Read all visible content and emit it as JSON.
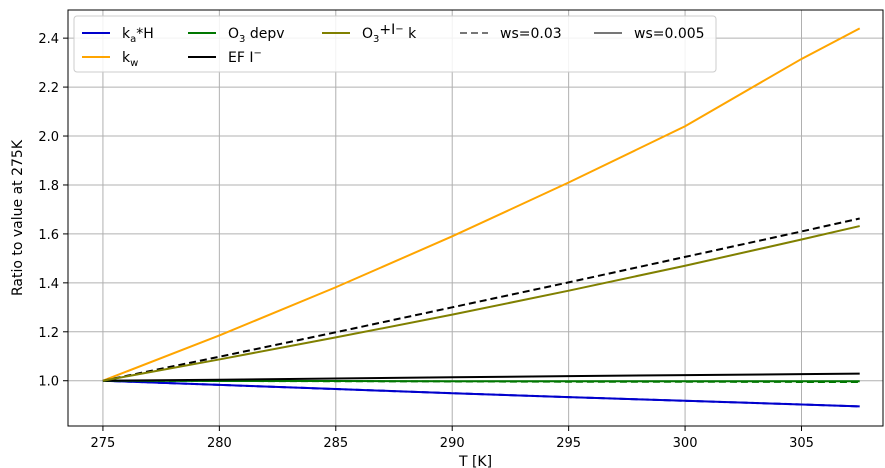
{
  "chart_data": {
    "type": "line",
    "xlabel": "T [K]",
    "ylabel": "Ratio to value at 275K",
    "xlim": [
      273.5,
      308.5
    ],
    "ylim": [
      0.815,
      2.515
    ],
    "xticks": [
      275,
      280,
      285,
      290,
      295,
      300,
      305
    ],
    "yticks": [
      1.0,
      1.2,
      1.4,
      1.6,
      1.8,
      2.0,
      2.2,
      2.4
    ],
    "xtick_labels": [
      "275",
      "280",
      "285",
      "290",
      "295",
      "300",
      "305"
    ],
    "ytick_labels": [
      "1.0",
      "1.2",
      "1.4",
      "1.6",
      "1.8",
      "2.0",
      "2.2",
      "2.4"
    ],
    "grid": true,
    "legend_position": "top-left",
    "series": [
      {
        "name": "k_a*H",
        "legend_main": "k",
        "legend_sub": "a",
        "legend_post": "*H",
        "color": "#0000cc",
        "dash": "solid",
        "x": [
          275,
          280,
          285,
          290,
          295,
          300,
          305,
          307.5
        ],
        "y": [
          1.0,
          0.983,
          0.966,
          0.949,
          0.933,
          0.918,
          0.903,
          0.895
        ]
      },
      {
        "name": "k_a*H ws=0.03",
        "color": "#0000cc",
        "dash": "dashed",
        "x": [
          275,
          280,
          285,
          290,
          295,
          300,
          305,
          307.5
        ],
        "y": [
          1.0,
          0.983,
          0.966,
          0.949,
          0.933,
          0.918,
          0.903,
          0.895
        ]
      },
      {
        "name": "k_w",
        "legend_main": "k",
        "legend_sub": "w",
        "legend_post": "",
        "color": "#ffa500",
        "dash": "solid",
        "x": [
          275,
          280,
          285,
          290,
          295,
          300,
          305,
          307.5
        ],
        "y": [
          1.0,
          1.185,
          1.382,
          1.59,
          1.81,
          2.04,
          2.315,
          2.44
        ]
      },
      {
        "name": "O3 depv",
        "legend_main": "O",
        "legend_sub": "3",
        "legend_post": " depv",
        "color": "#007700",
        "dash": "solid",
        "x": [
          275,
          280,
          285,
          290,
          295,
          300,
          305,
          307.5
        ],
        "y": [
          1.0,
          0.999,
          0.999,
          0.998,
          0.998,
          0.998,
          0.998,
          0.998
        ]
      },
      {
        "name": "O3 depv ws=0.03",
        "color": "#007700",
        "dash": "dashed",
        "x": [
          275,
          280,
          285,
          290,
          295,
          300,
          305,
          307.5
        ],
        "y": [
          1.0,
          0.999,
          0.998,
          0.997,
          0.996,
          0.996,
          0.995,
          0.995
        ]
      },
      {
        "name": "EF I-",
        "legend_main": "EF I",
        "legend_sup": "−",
        "color": "#000000",
        "dash": "solid",
        "x": [
          275,
          280,
          285,
          290,
          295,
          300,
          305,
          307.5
        ],
        "y": [
          1.0,
          1.004,
          1.009,
          1.014,
          1.019,
          1.023,
          1.027,
          1.029
        ]
      },
      {
        "name": "EF I- ws=0.03",
        "color": "#000000",
        "dash": "dashed",
        "x": [
          275,
          280,
          285,
          290,
          295,
          300,
          305,
          307.5
        ],
        "y": [
          1.0,
          1.098,
          1.198,
          1.3,
          1.402,
          1.506,
          1.61,
          1.663
        ]
      },
      {
        "name": "O3+I- k",
        "legend_main": "O",
        "legend_sub": "3",
        "legend_mid": "+I",
        "legend_sup": "−",
        "legend_post": " k",
        "color": "#808000",
        "dash": "solid",
        "x": [
          275,
          280,
          285,
          290,
          295,
          300,
          305,
          307.5
        ],
        "y": [
          1.0,
          1.087,
          1.177,
          1.27,
          1.368,
          1.47,
          1.577,
          1.632
        ]
      }
    ],
    "legend_styles": [
      {
        "name": "ws=0.03",
        "color": "#777777",
        "dash": "dashed"
      },
      {
        "name": "ws=0.005",
        "color": "#777777",
        "dash": "solid"
      }
    ]
  }
}
